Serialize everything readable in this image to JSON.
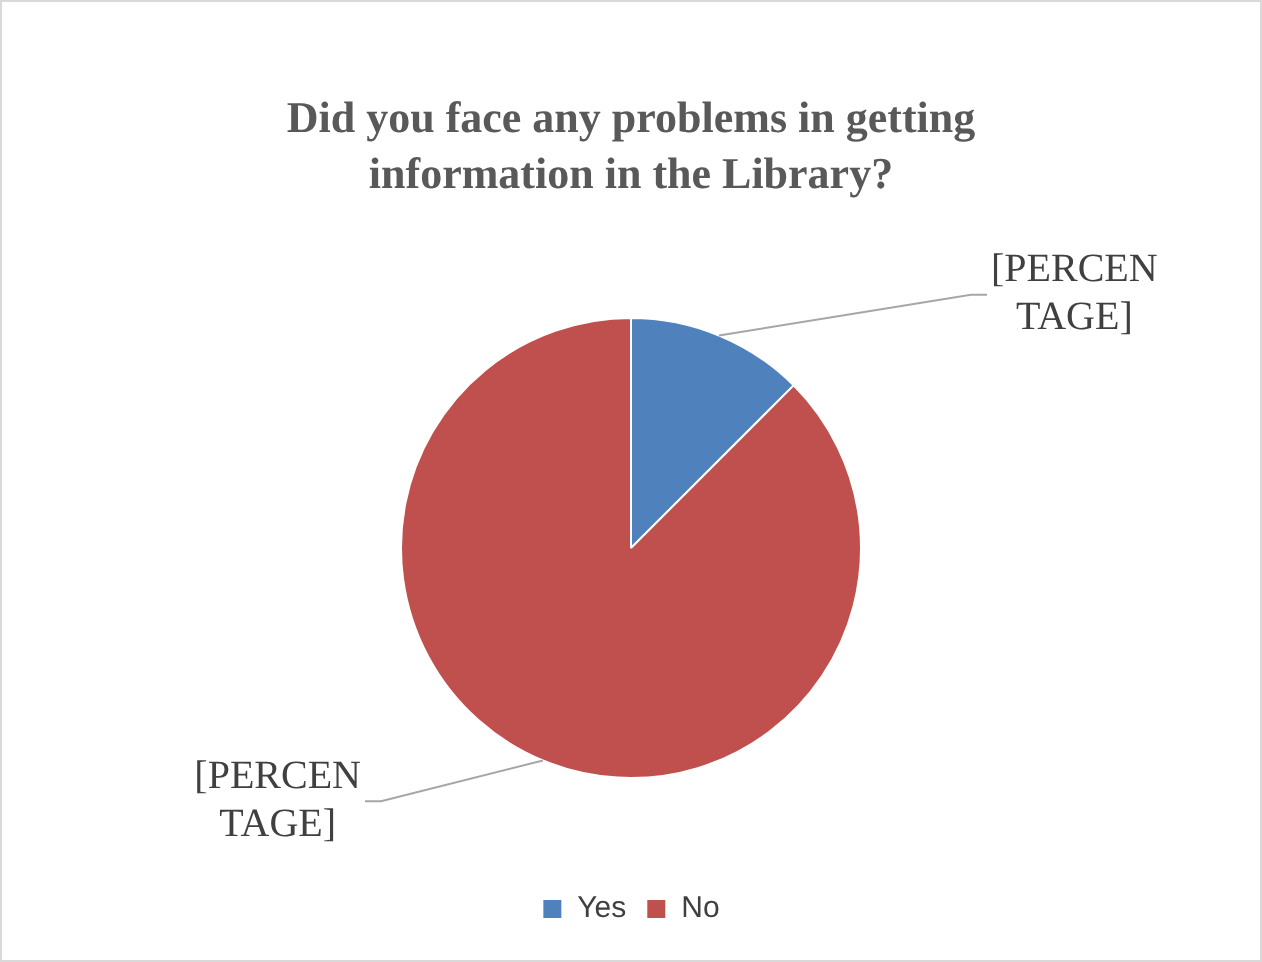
{
  "chart_data": {
    "type": "pie",
    "title": "Did you face any problems in getting information in the Library?",
    "categories": [
      "Yes",
      "No"
    ],
    "values": [
      12.5,
      87.5
    ],
    "colors": [
      "#4f81bd",
      "#c0504d"
    ],
    "value_labels": [
      "[PERCENTAGE]",
      "[PERCENTAGE]"
    ],
    "legend": "bottom"
  }
}
